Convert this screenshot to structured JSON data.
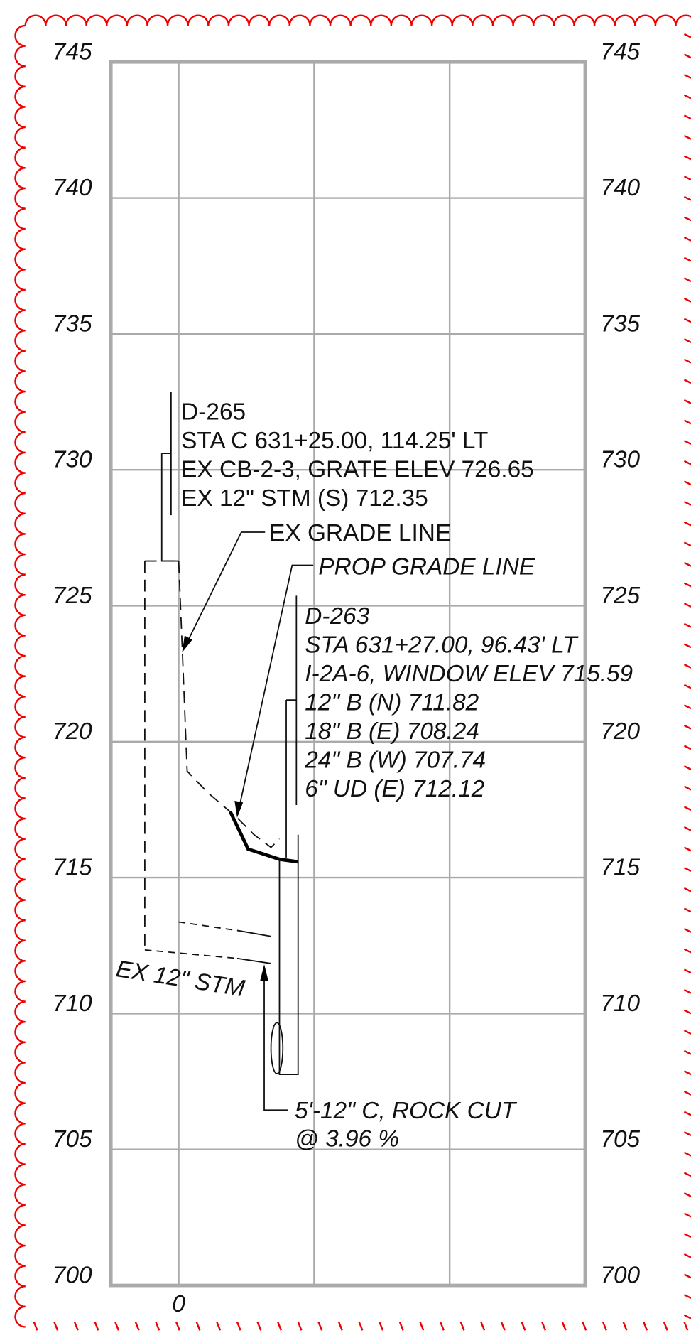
{
  "elevation_labels": [
    745,
    740,
    735,
    730,
    725,
    720,
    715,
    710,
    705,
    700
  ],
  "station_label": "0",
  "ex_structure": {
    "lines": [
      "D-265",
      "STA C 631+25.00, 114.25' LT",
      "EX CB-2-3, GRATE ELEV 726.65",
      "EX 12\" STM (S) 712.35"
    ]
  },
  "ex_grade_line": "EX GRADE LINE",
  "prop_grade_line": "PROP GRADE LINE",
  "prop_structure": {
    "lines": [
      "D-263",
      "STA 631+27.00, 96.43' LT",
      "I-2A-6, WINDOW ELEV 715.59",
      "12\" B (N) 711.82",
      "18\" B (E) 708.24",
      "24\" B (W) 707.74",
      "6\" UD (E) 712.12"
    ]
  },
  "pipe_label": "EX 12\" STM",
  "pipe_note": [
    "5'-12\" C, ROCK CUT",
    "@ 3.96 %"
  ]
}
